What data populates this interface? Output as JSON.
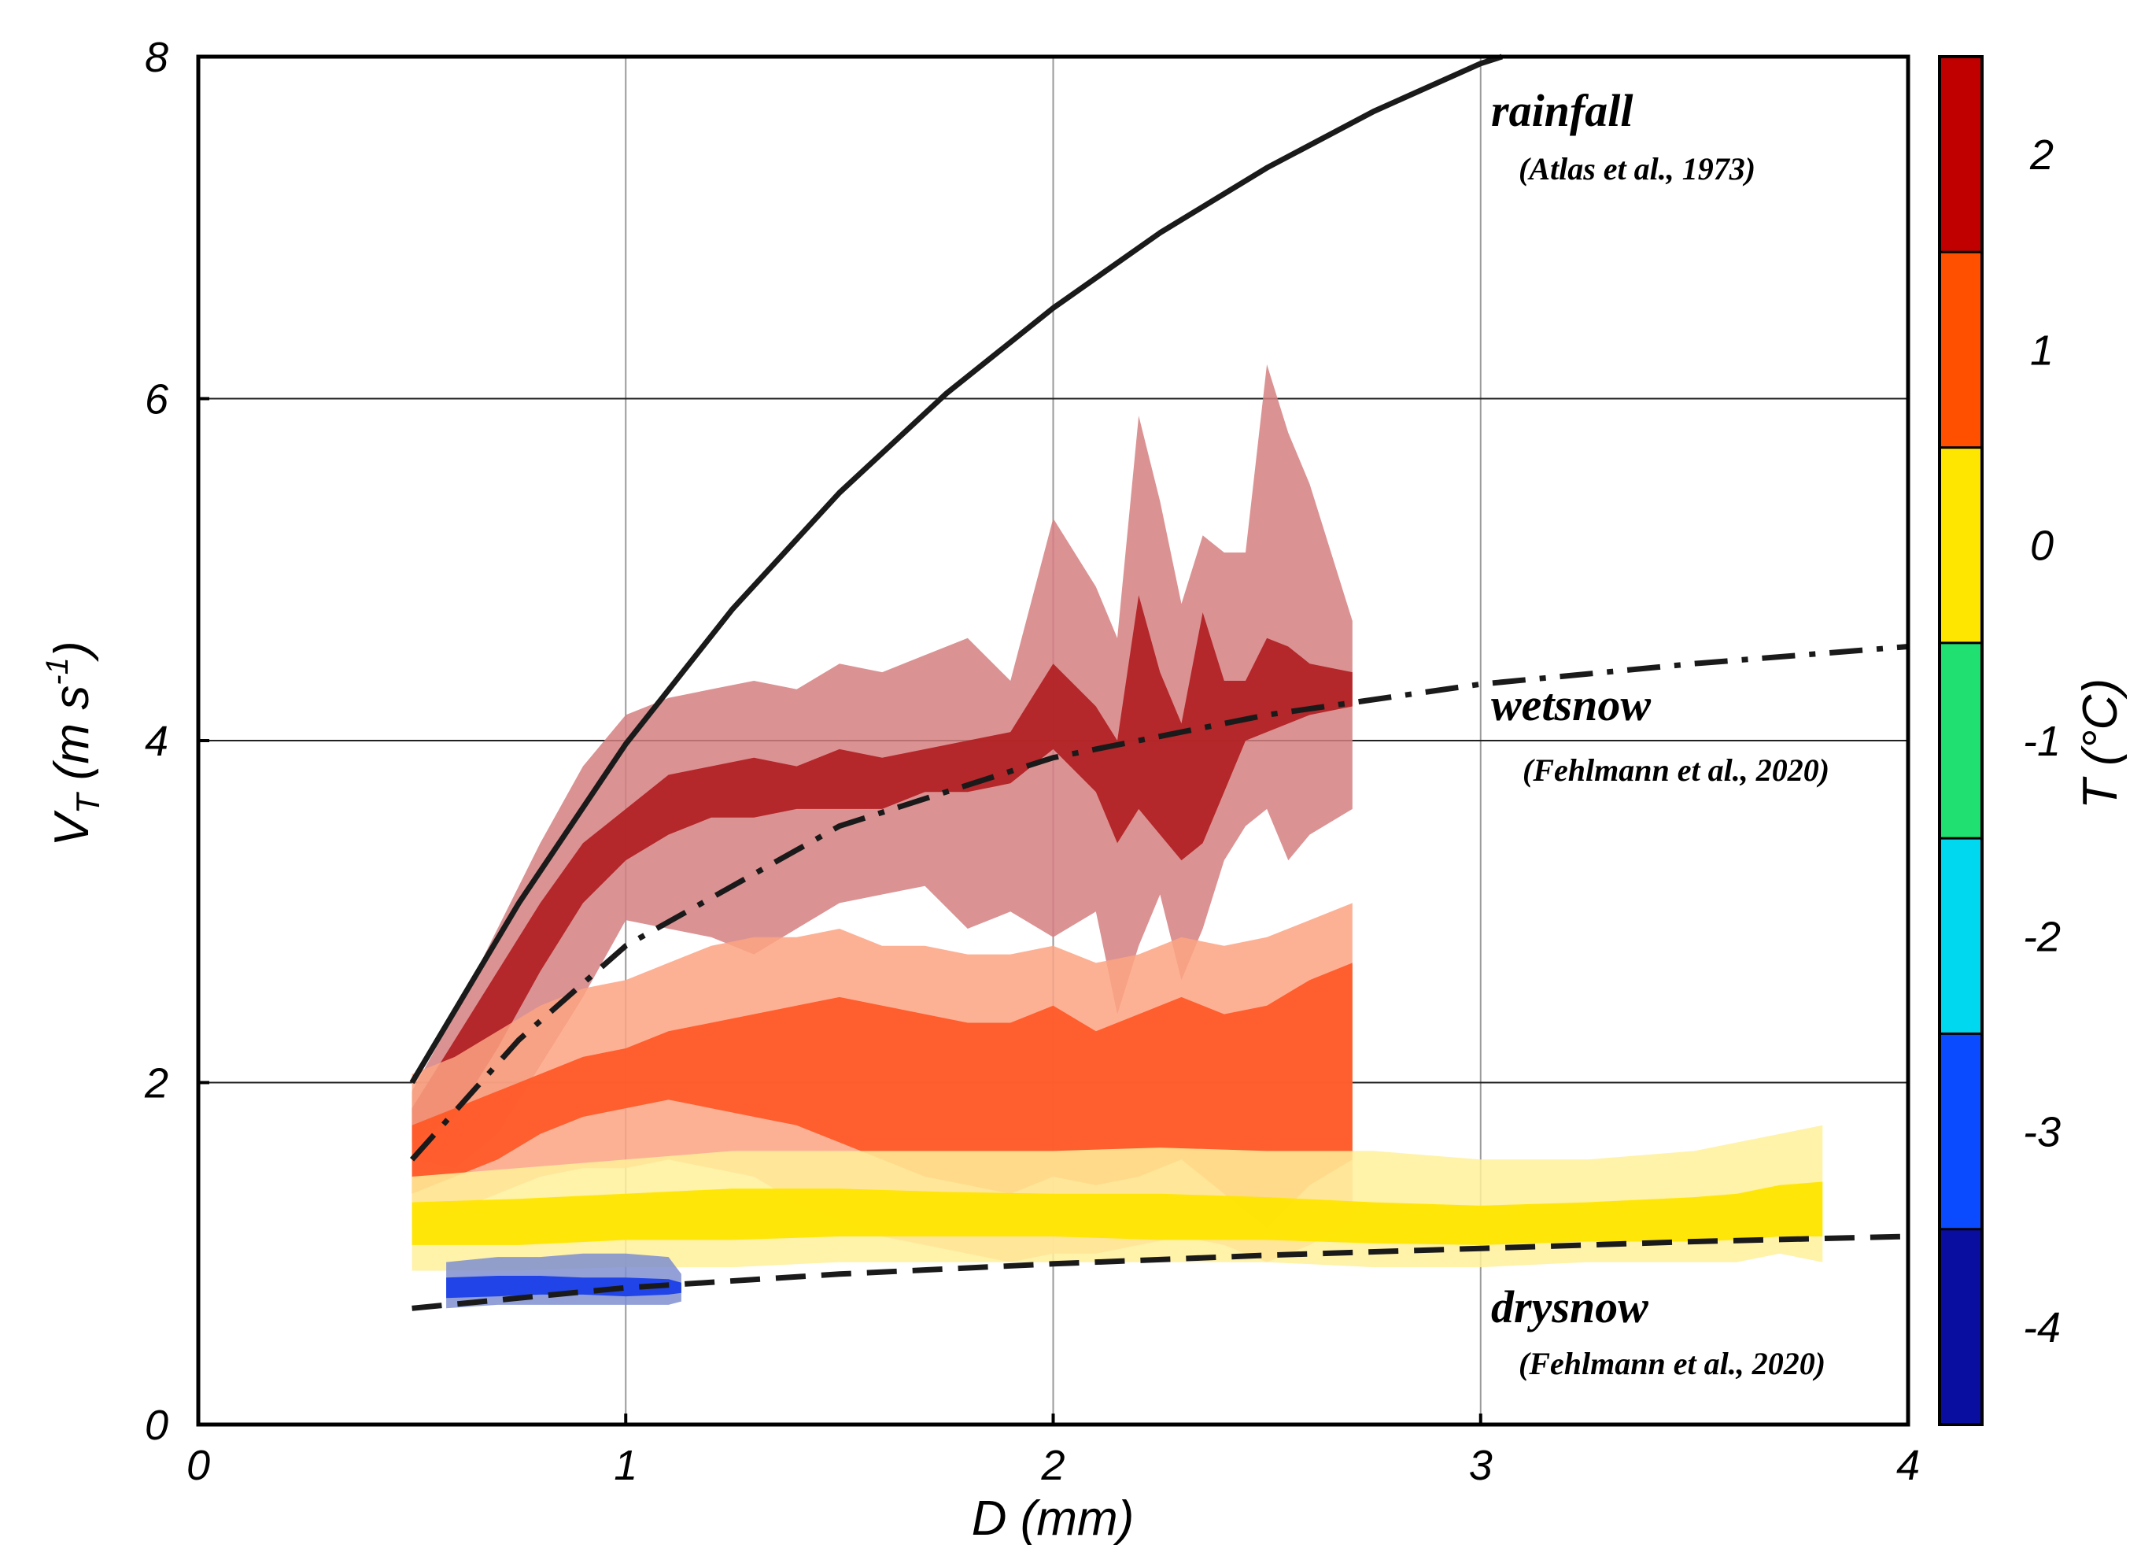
{
  "chart_data": {
    "type": "area",
    "title": "",
    "xlabel": "D (mm)",
    "ylabel_main": "V",
    "ylabel_sub": "T",
    "ylabel_units_open": " (m s",
    "ylabel_units_exp": "-1",
    "ylabel_units_close": ")",
    "xlim": [
      0,
      4
    ],
    "ylim": [
      0,
      8
    ],
    "xticks": [
      0,
      1,
      2,
      3,
      4
    ],
    "yticks": [
      0,
      2,
      4,
      6,
      8
    ],
    "grid": true,
    "colorbar": {
      "label": "T (°C)",
      "ticks": [
        2,
        1,
        0,
        -1,
        -2,
        -3,
        -4
      ],
      "bins": [
        {
          "range": [
            1.5,
            2.5
          ],
          "color": "#c00000"
        },
        {
          "range": [
            0.5,
            1.5
          ],
          "color": "#ff5000"
        },
        {
          "range": [
            -0.5,
            0.5
          ],
          "color": "#ffe600"
        },
        {
          "range": [
            -1.5,
            -0.5
          ],
          "color": "#1fe070"
        },
        {
          "range": [
            -2.5,
            -1.5
          ],
          "color": "#00d8f0"
        },
        {
          "range": [
            -3.5,
            -2.5
          ],
          "color": "#0a4bff"
        },
        {
          "range": [
            -4.5,
            -3.5
          ],
          "color": "#0a0ea0"
        }
      ]
    },
    "reference_curves": [
      {
        "name": "rainfall",
        "source": "(Atlas et al., 1973)",
        "style": "solid",
        "x": [
          0.5,
          0.75,
          1.0,
          1.25,
          1.5,
          1.75,
          2.0,
          2.25,
          2.5,
          2.75,
          3.0,
          3.05
        ],
        "y": [
          2.0,
          3.05,
          3.98,
          4.77,
          5.45,
          6.03,
          6.53,
          6.97,
          7.35,
          7.68,
          7.96,
          8.0
        ]
      },
      {
        "name": "wetsnow",
        "source": "(Fehlmann et al., 2020)",
        "style": "dashdot",
        "x": [
          0.5,
          0.75,
          1.0,
          1.5,
          2.0,
          2.5,
          3.0,
          3.5,
          4.0
        ],
        "y": [
          1.55,
          2.25,
          2.8,
          3.5,
          3.9,
          4.15,
          4.33,
          4.45,
          4.55
        ]
      },
      {
        "name": "drysnow",
        "source": "(Fehlmann et al., 2020)",
        "style": "dashed",
        "x": [
          0.5,
          1.0,
          1.5,
          2.0,
          2.5,
          3.0,
          3.5,
          4.0
        ],
        "y": [
          0.68,
          0.8,
          0.88,
          0.94,
          0.99,
          1.03,
          1.07,
          1.1
        ]
      }
    ],
    "series": [
      {
        "name": "T = 2 °C",
        "color": "#b22224",
        "outer_color": "#d57f80",
        "x": [
          0.5,
          0.6,
          0.7,
          0.8,
          0.9,
          1.0,
          1.1,
          1.2,
          1.3,
          1.4,
          1.5,
          1.6,
          1.7,
          1.8,
          1.9,
          2.0,
          2.1,
          2.15,
          2.2,
          2.25,
          2.3,
          2.35,
          2.4,
          2.45,
          2.5,
          2.55,
          2.6,
          2.7
        ],
        "outer_lo": [
          1.55,
          1.5,
          1.7,
          2.1,
          2.5,
          2.95,
          2.9,
          2.85,
          2.75,
          2.9,
          3.05,
          3.1,
          3.15,
          2.9,
          3.0,
          2.85,
          3.0,
          2.4,
          2.8,
          3.1,
          2.6,
          2.9,
          3.3,
          3.5,
          3.6,
          3.3,
          3.45,
          3.6
        ],
        "outer_hi": [
          1.95,
          2.4,
          2.9,
          3.4,
          3.85,
          4.15,
          4.25,
          4.3,
          4.35,
          4.3,
          4.45,
          4.4,
          4.5,
          4.6,
          4.35,
          5.3,
          4.9,
          4.6,
          5.9,
          5.4,
          4.8,
          5.2,
          5.1,
          5.1,
          6.2,
          5.8,
          5.5,
          4.7
        ],
        "inner_lo": [
          1.65,
          1.8,
          2.2,
          2.65,
          3.05,
          3.3,
          3.45,
          3.55,
          3.55,
          3.6,
          3.6,
          3.6,
          3.7,
          3.7,
          3.75,
          3.95,
          3.7,
          3.4,
          3.6,
          3.45,
          3.3,
          3.4,
          3.7,
          4.0,
          4.05,
          4.1,
          4.15,
          4.2
        ],
        "inner_hi": [
          1.85,
          2.25,
          2.65,
          3.05,
          3.4,
          3.6,
          3.8,
          3.85,
          3.9,
          3.85,
          3.95,
          3.9,
          3.95,
          4.0,
          4.05,
          4.45,
          4.2,
          4.0,
          4.85,
          4.4,
          4.1,
          4.75,
          4.35,
          4.35,
          4.6,
          4.55,
          4.45,
          4.4
        ]
      },
      {
        "name": "T = 1 °C",
        "color": "#ff5a28",
        "outer_color": "#fba383",
        "x": [
          0.5,
          0.6,
          0.7,
          0.8,
          0.9,
          1.0,
          1.1,
          1.2,
          1.3,
          1.4,
          1.5,
          1.6,
          1.7,
          1.8,
          1.9,
          2.0,
          2.1,
          2.2,
          2.3,
          2.4,
          2.5,
          2.6,
          2.7
        ],
        "outer_lo": [
          1.15,
          1.25,
          1.35,
          1.45,
          1.5,
          1.5,
          1.55,
          1.5,
          1.45,
          1.3,
          1.2,
          1.1,
          1.05,
          1.0,
          0.95,
          1.0,
          1.0,
          1.05,
          1.1,
          1.05,
          0.95,
          1.05,
          1.2
        ],
        "outer_hi": [
          2.05,
          2.15,
          2.3,
          2.45,
          2.55,
          2.6,
          2.7,
          2.8,
          2.85,
          2.85,
          2.9,
          2.8,
          2.8,
          2.75,
          2.75,
          2.8,
          2.7,
          2.75,
          2.85,
          2.8,
          2.85,
          2.95,
          3.05
        ],
        "inner_lo": [
          1.35,
          1.45,
          1.55,
          1.7,
          1.8,
          1.85,
          1.9,
          1.85,
          1.8,
          1.75,
          1.65,
          1.55,
          1.45,
          1.4,
          1.35,
          1.45,
          1.4,
          1.45,
          1.55,
          1.35,
          1.15,
          1.4,
          1.55
        ],
        "inner_hi": [
          1.75,
          1.85,
          1.95,
          2.05,
          2.15,
          2.2,
          2.3,
          2.35,
          2.4,
          2.45,
          2.5,
          2.45,
          2.4,
          2.35,
          2.35,
          2.45,
          2.3,
          2.4,
          2.5,
          2.4,
          2.45,
          2.6,
          2.7
        ]
      },
      {
        "name": "T = 0 °C",
        "color": "#ffe500",
        "outer_color": "#fff09a",
        "x": [
          0.5,
          0.75,
          1.0,
          1.25,
          1.5,
          1.75,
          2.0,
          2.25,
          2.5,
          2.75,
          3.0,
          3.25,
          3.5,
          3.6,
          3.7,
          3.8
        ],
        "outer_lo": [
          0.9,
          0.9,
          0.92,
          0.92,
          0.95,
          0.95,
          0.95,
          0.95,
          0.95,
          0.92,
          0.92,
          0.95,
          0.95,
          0.95,
          1.0,
          0.95
        ],
        "outer_hi": [
          1.45,
          1.5,
          1.55,
          1.6,
          1.6,
          1.6,
          1.6,
          1.62,
          1.6,
          1.6,
          1.55,
          1.55,
          1.6,
          1.65,
          1.7,
          1.75
        ],
        "inner_lo": [
          1.05,
          1.05,
          1.08,
          1.08,
          1.1,
          1.1,
          1.1,
          1.08,
          1.08,
          1.06,
          1.05,
          1.07,
          1.07,
          1.08,
          1.1,
          1.1
        ],
        "inner_hi": [
          1.3,
          1.32,
          1.35,
          1.38,
          1.38,
          1.36,
          1.35,
          1.35,
          1.33,
          1.3,
          1.28,
          1.3,
          1.33,
          1.35,
          1.4,
          1.42
        ]
      },
      {
        "name": "T = -3 °C",
        "color": "#1a3fe8",
        "outer_color": "#7f8fd0",
        "x": [
          0.58,
          0.7,
          0.8,
          0.9,
          1.0,
          1.1,
          1.13
        ],
        "outer_lo": [
          0.68,
          0.7,
          0.7,
          0.7,
          0.7,
          0.7,
          0.72
        ],
        "outer_hi": [
          0.95,
          0.98,
          0.98,
          1.0,
          1.0,
          0.98,
          0.88
        ],
        "inner_lo": [
          0.74,
          0.75,
          0.76,
          0.76,
          0.75,
          0.76,
          0.77
        ],
        "inner_hi": [
          0.86,
          0.87,
          0.87,
          0.86,
          0.86,
          0.85,
          0.83
        ]
      }
    ]
  }
}
